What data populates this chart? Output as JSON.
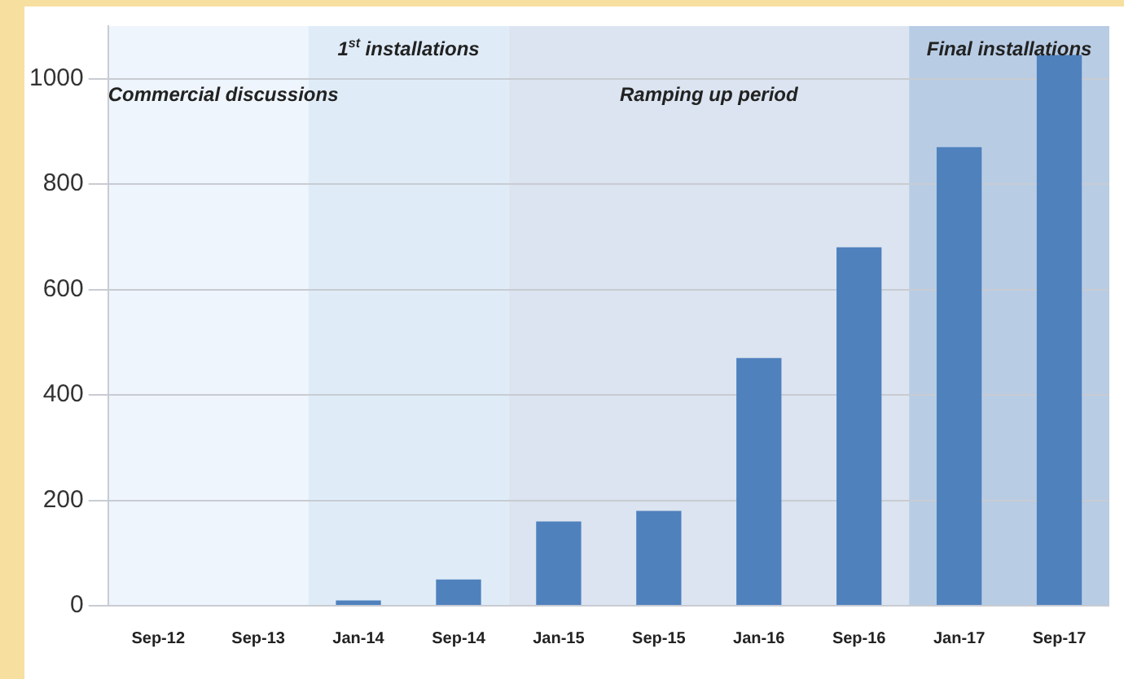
{
  "chart_data": {
    "type": "bar",
    "categories": [
      "Sep-12",
      "Sep-13",
      "Jan-14",
      "Sep-14",
      "Jan-15",
      "Sep-15",
      "Jan-16",
      "Sep-16",
      "Jan-17",
      "Sep-17"
    ],
    "values": [
      0,
      0,
      10,
      50,
      160,
      180,
      470,
      680,
      870,
      1045
    ],
    "color": "#4f81bd",
    "ylim": [
      0,
      1100
    ],
    "yticks": [
      0,
      200,
      400,
      600,
      800,
      1000
    ],
    "grid": "y",
    "bands": [
      {
        "axis": "x",
        "from": "Sep-12",
        "to": "Sep-13",
        "label": "Commercial discussions",
        "color": "#eef5fc"
      },
      {
        "axis": "x",
        "from": "Jan-14",
        "to": "Sep-14",
        "label": "1$^{st}$ installations",
        "color": "#dfecf8"
      },
      {
        "axis": "x",
        "from": "Jan-15",
        "to": "Sep-16",
        "label": "Ramping up period",
        "color": "#dbe4f0"
      },
      {
        "axis": "x",
        "from": "Jan-17",
        "to": "Sep-17",
        "label": "Final installations",
        "color": "#b8cce4"
      }
    ]
  }
}
